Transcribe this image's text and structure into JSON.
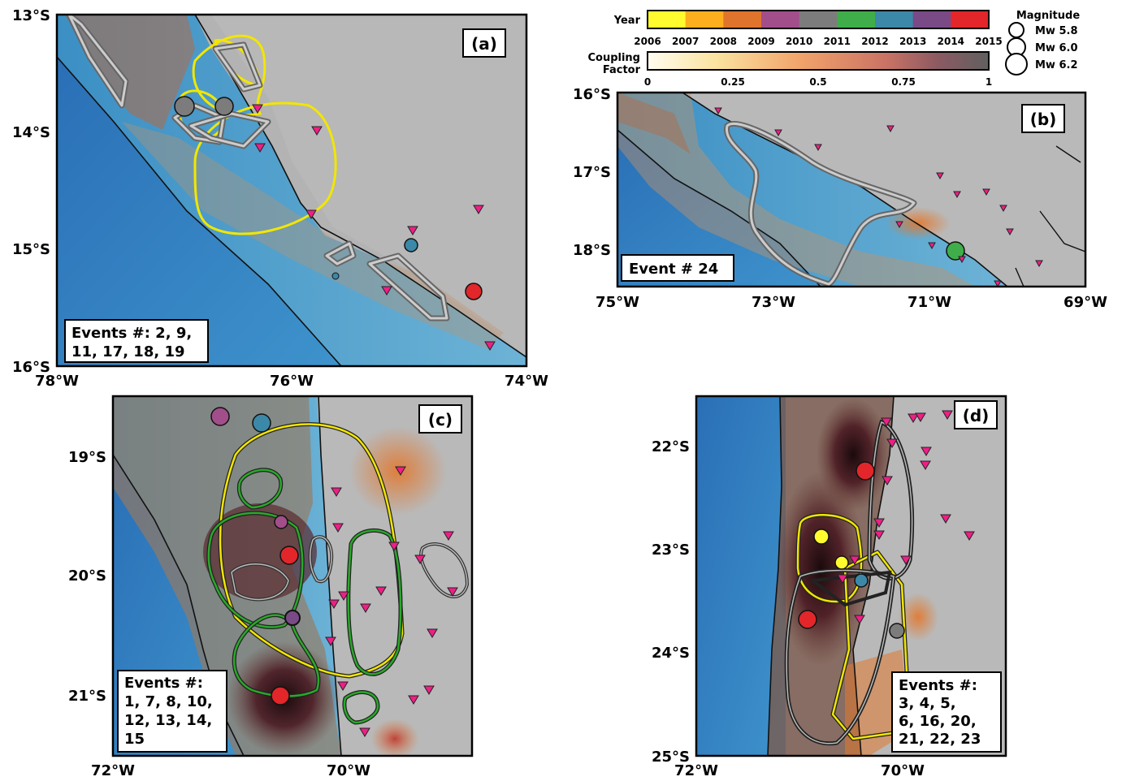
{
  "colors": {
    "year_scale": [
      "#fffb2e",
      "#fdae1e",
      "#e0742c",
      "#a24e8a",
      "#7c7c7c",
      "#3fae4a",
      "#3c88a8",
      "#7a4a86",
      "#e2262a"
    ],
    "coupling_scale": [
      "#fffdf0",
      "#fbe3a0",
      "#f1a36a",
      "#c97365",
      "#8c5a62",
      "#606060"
    ],
    "ocean": "#2f7fc0",
    "land": "#b9b9b9",
    "station_marker": "#ee1f86",
    "rupture_yellow": "#f2e600",
    "rupture_green": "#2aa82a",
    "rupture_black": "#222222"
  },
  "legend": {
    "year_title": "Year",
    "year_ticks": [
      "2006",
      "2007",
      "2008",
      "2009",
      "2010",
      "2011",
      "2012",
      "2013",
      "2014",
      "2015"
    ],
    "coupling_title_line1": "Coupling",
    "coupling_title_line2": "Factor",
    "coupling_ticks": [
      "0",
      "0.25",
      "0.5",
      "0.75",
      "1"
    ],
    "magnitude_title": "Magnitude",
    "magnitude_items": [
      {
        "label": "Mw 5.8",
        "mw": 5.8
      },
      {
        "label": "Mw 6.0",
        "mw": 6.0
      },
      {
        "label": "Mw 6.2",
        "mw": 6.2
      }
    ]
  },
  "panels": {
    "a": {
      "tag": "(a)",
      "lat_ticks": [
        "13°S",
        "14°S",
        "15°S",
        "16°S"
      ],
      "lon_ticks": [
        "78°W",
        "76°W",
        "74°W"
      ],
      "events_line1": "Events #: 2, 9,",
      "events_line2": "11, 17, 18, 19"
    },
    "b": {
      "tag": "(b)",
      "lat_ticks": [
        "16°S",
        "17°S",
        "18°S"
      ],
      "lon_ticks": [
        "75°W",
        "73°W",
        "71°W",
        "69°W"
      ],
      "events_line1": "Event # 24"
    },
    "c": {
      "tag": "(c)",
      "lat_ticks": [
        "19°S",
        "20°S",
        "21°S"
      ],
      "lon_ticks": [
        "72°W",
        "70°W"
      ],
      "events_line1": "Events #:",
      "events_line2": "1, 7, 8, 10,",
      "events_line3": "12, 13, 14,",
      "events_line4": "15"
    },
    "d": {
      "tag": "(d)",
      "lat_ticks": [
        "22°S",
        "23°S",
        "24°S",
        "25°S"
      ],
      "lon_ticks": [
        "72°W",
        "70°W"
      ],
      "events_line1": "Events #:",
      "events_line2": "3, 4, 5,",
      "events_line3": "6, 16, 20,",
      "events_line4": "21, 22, 23"
    }
  }
}
